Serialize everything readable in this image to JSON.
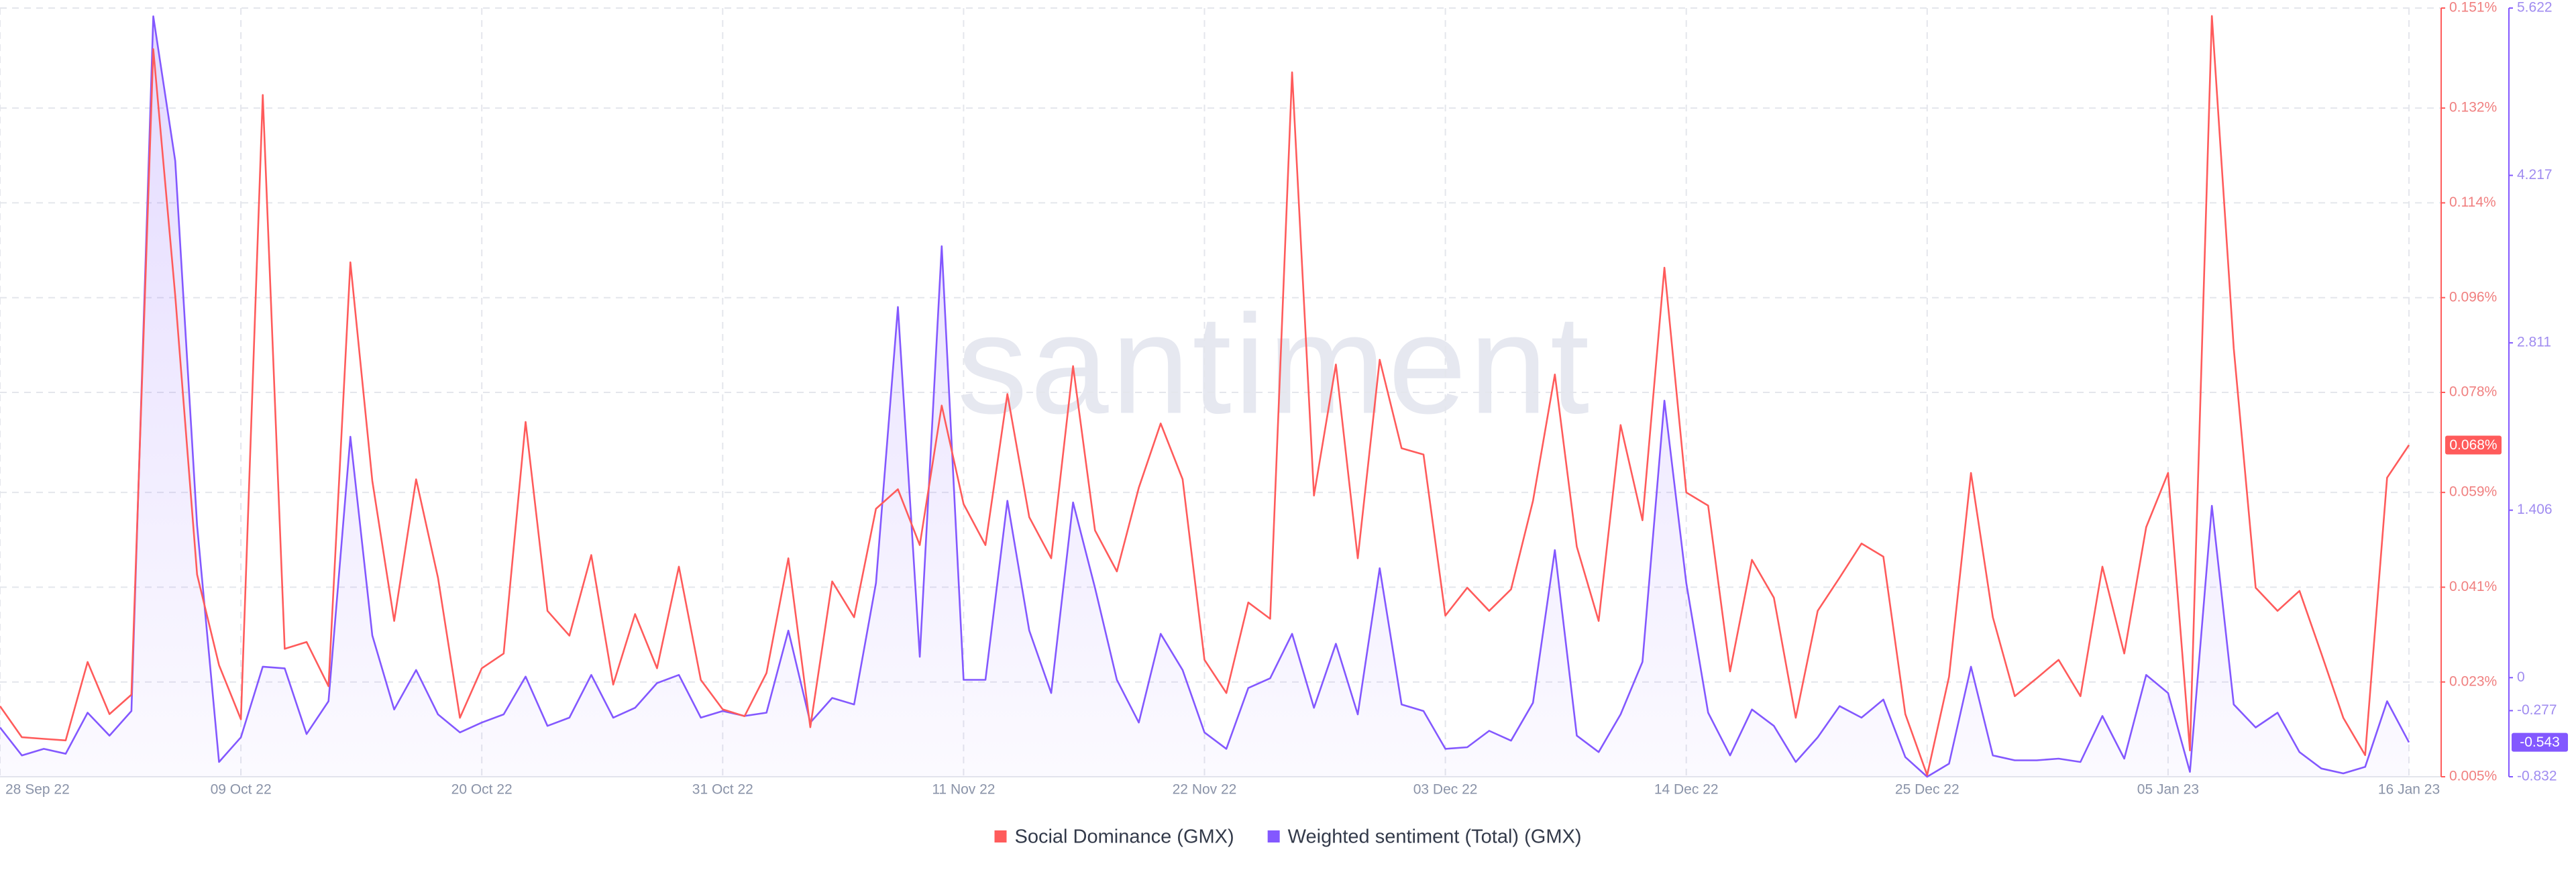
{
  "chart_data": {
    "type": "line",
    "watermark": "santiment",
    "categories": [
      "28 Sep 22",
      null,
      null,
      null,
      null,
      null,
      null,
      null,
      null,
      null,
      null,
      "09 Oct 22",
      null,
      null,
      null,
      null,
      null,
      null,
      null,
      null,
      null,
      null,
      "20 Oct 22",
      null,
      null,
      null,
      null,
      null,
      null,
      null,
      null,
      null,
      null,
      "31 Oct 22",
      null,
      null,
      null,
      null,
      null,
      null,
      null,
      null,
      null,
      null,
      "11 Nov 22",
      null,
      null,
      null,
      null,
      null,
      null,
      null,
      null,
      null,
      null,
      "22 Nov 22",
      null,
      null,
      null,
      null,
      null,
      null,
      null,
      null,
      null,
      null,
      "03 Dec 22",
      null,
      null,
      null,
      null,
      null,
      null,
      null,
      null,
      null,
      null,
      "14 Dec 22",
      null,
      null,
      null,
      null,
      null,
      null,
      null,
      null,
      null,
      null,
      "25 Dec 22",
      null,
      null,
      null,
      null,
      null,
      null,
      null,
      null,
      null,
      null,
      "05 Jan 23",
      null,
      null,
      null,
      null,
      null,
      null,
      null,
      null,
      null,
      null,
      "16 Jan 23"
    ],
    "series": [
      {
        "name": "Social Dominance (GMX)",
        "color": "#ff5b5b",
        "axis": "y",
        "last_value_label": "0.068%",
        "values": [
          0.0184,
          0.0125,
          0.0122,
          0.0119,
          0.0268,
          0.0169,
          0.0206,
          0.1432,
          0.0964,
          0.0434,
          0.0262,
          0.0159,
          0.1345,
          0.0293,
          0.0306,
          0.0222,
          0.1027,
          0.0612,
          0.0346,
          0.0615,
          0.0428,
          0.0162,
          0.0256,
          0.0284,
          0.0724,
          0.0365,
          0.0318,
          0.0471,
          0.0225,
          0.0359,
          0.0256,
          0.0449,
          0.0234,
          0.0178,
          0.0165,
          0.0247,
          0.0465,
          0.0144,
          0.0421,
          0.0353,
          0.0559,
          0.0596,
          0.049,
          0.0755,
          0.0568,
          0.049,
          0.0777,
          0.0543,
          0.0465,
          0.083,
          0.0518,
          0.044,
          0.0599,
          0.0721,
          0.0615,
          0.0272,
          0.0209,
          0.0381,
          0.035,
          0.1388,
          0.0584,
          0.0833,
          0.0465,
          0.0842,
          0.0674,
          0.0662,
          0.0356,
          0.0409,
          0.0365,
          0.0406,
          0.0574,
          0.0814,
          0.0487,
          0.0346,
          0.0718,
          0.0537,
          0.1017,
          0.059,
          0.0565,
          0.025,
          0.0462,
          0.039,
          0.0162,
          0.0365,
          0.0428,
          0.0493,
          0.0468,
          0.0169,
          0.0053,
          0.024,
          0.0627,
          0.0353,
          0.0203,
          0.0237,
          0.0272,
          0.0203,
          0.0449,
          0.0284,
          0.0524,
          0.0627,
          0.01,
          0.1495,
          0.0864,
          0.0409,
          0.0365,
          0.0403,
          0.0284,
          0.0162,
          0.0091,
          0.0618,
          0.068
        ]
      },
      {
        "name": "Weighted sentiment (Total) (GMX)",
        "color": "#8358ff",
        "axis": "y2",
        "values": [
          -0.418,
          -0.653,
          -0.598,
          -0.639,
          -0.294,
          -0.487,
          -0.28,
          5.553,
          4.339,
          1.278,
          -0.708,
          -0.501,
          0.092,
          0.078,
          -0.473,
          -0.198,
          2.023,
          0.354,
          -0.267,
          0.064,
          -0.308,
          -0.46,
          -0.377,
          -0.308,
          0.009,
          -0.405,
          -0.336,
          0.023,
          -0.336,
          -0.253,
          -0.046,
          0.023,
          -0.336,
          -0.28,
          -0.322,
          -0.294,
          0.395,
          -0.377,
          -0.17,
          -0.225,
          0.795,
          3.112,
          0.175,
          3.622,
          -0.018,
          -0.018,
          1.485,
          0.395,
          -0.129,
          1.471,
          0.754,
          -0.018,
          -0.377,
          0.368,
          0.064,
          -0.46,
          -0.598,
          -0.087,
          -0.005,
          0.368,
          -0.253,
          0.285,
          -0.308,
          0.919,
          -0.225,
          -0.28,
          -0.598,
          -0.584,
          -0.446,
          -0.529,
          -0.211,
          1.071,
          -0.487,
          -0.625,
          -0.308,
          0.133,
          2.326,
          0.795,
          -0.294,
          -0.653,
          -0.267,
          -0.405,
          -0.708,
          -0.501,
          -0.239,
          -0.336,
          -0.184,
          -0.667,
          -0.832,
          -0.722,
          0.092,
          -0.653,
          -0.694,
          -0.694,
          -0.68,
          -0.708,
          -0.322,
          -0.68,
          0.023,
          -0.129,
          -0.791,
          1.443,
          -0.225,
          -0.418,
          -0.294,
          -0.625,
          -0.763,
          -0.804,
          -0.749,
          -0.198,
          -0.543
        ]
      }
    ],
    "ylim": [
      0.005,
      0.151
    ],
    "yticks": [
      {
        "value": 0.005,
        "label": "0.005%"
      },
      {
        "value": 0.023,
        "label": "0.023%"
      },
      {
        "value": 0.041,
        "label": "0.041%"
      },
      {
        "value": 0.059,
        "label": "0.059%"
      },
      {
        "value": 0.078,
        "label": "0.078%"
      },
      {
        "value": 0.096,
        "label": "0.096%"
      },
      {
        "value": 0.114,
        "label": "0.114%"
      },
      {
        "value": 0.132,
        "label": "0.132%"
      },
      {
        "value": 0.151,
        "label": "0.151%"
      }
    ],
    "y2lim": [
      -0.832,
      5.622
    ],
    "y2ticks": [
      -0.832,
      -0.277,
      0,
      1.406,
      2.811,
      4.217,
      5.622
    ],
    "grid": true,
    "legend": "bottom"
  }
}
